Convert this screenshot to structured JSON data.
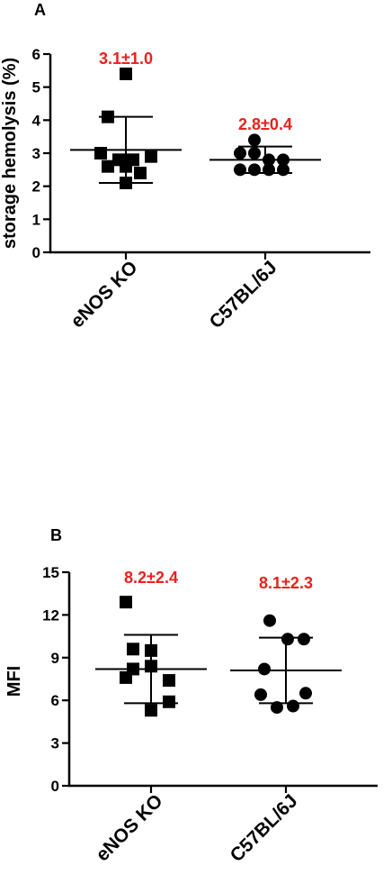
{
  "chart_data": [
    {
      "type": "scatter",
      "panel_label": "A",
      "ylabel": "storage hemolysis (%)",
      "ylim": [
        0,
        6
      ],
      "yticks": [
        "0",
        "1",
        "2",
        "3",
        "4",
        "5",
        "6"
      ],
      "categories": [
        "eNOS KO",
        "C57BL/6J"
      ],
      "groups": [
        {
          "category": "eNOS KO",
          "marker": "square",
          "values": [
            5.4,
            4.1,
            3.0,
            2.8,
            2.8,
            2.6,
            2.6,
            2.4,
            2.9,
            2.1
          ],
          "mean": 3.1,
          "sd": 1.0,
          "annotation": "3.1±1.0"
        },
        {
          "category": "C57BL/6J",
          "marker": "circle",
          "values": [
            3.4,
            3.0,
            3.0,
            2.8,
            2.8,
            2.5,
            2.5,
            2.5,
            2.5
          ],
          "mean": 2.8,
          "sd": 0.4,
          "annotation": "2.8±0.4"
        }
      ]
    },
    {
      "type": "scatter",
      "panel_label": "B",
      "ylabel": "MFI",
      "ylim": [
        0,
        15
      ],
      "yticks": [
        "0",
        "3",
        "6",
        "9",
        "12",
        "15"
      ],
      "categories": [
        "eNOS KO",
        "C57BL/6J"
      ],
      "groups": [
        {
          "category": "eNOS KO",
          "marker": "square",
          "values": [
            12.9,
            9.6,
            9.5,
            8.4,
            8.2,
            7.6,
            7.4,
            5.9,
            5.3
          ],
          "mean": 8.2,
          "sd": 2.4,
          "annotation": "8.2±2.4"
        },
        {
          "category": "C57BL/6J",
          "marker": "circle",
          "values": [
            11.6,
            10.3,
            10.3,
            8.2,
            6.5,
            6.4,
            5.5,
            5.6
          ],
          "mean": 8.1,
          "sd": 2.3,
          "annotation": "8.1±2.3"
        }
      ]
    }
  ]
}
